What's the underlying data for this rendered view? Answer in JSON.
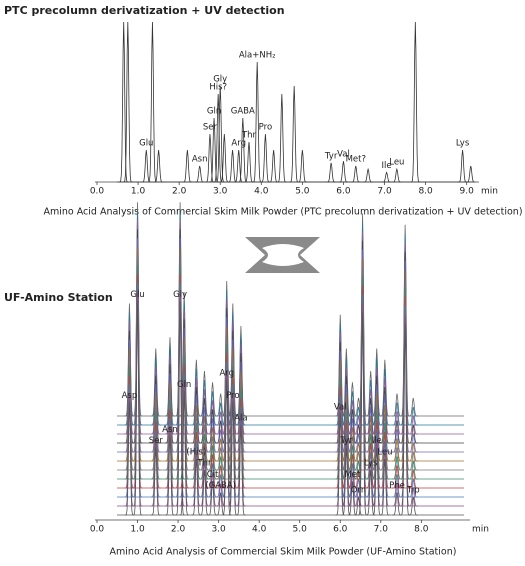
{
  "chart_data": [
    {
      "type": "chromatogram",
      "title": "PTC precolumn derivatization + UV detection",
      "caption": "Amino Acid Analysis of Commercial Skim Milk Powder (PTC precolumn derivatization + UV detection)",
      "x": [
        0.65,
        0.75,
        1.2,
        1.35,
        1.5,
        2.2,
        2.5,
        2.75,
        2.85,
        2.95,
        3.0,
        3.1,
        3.3,
        3.45,
        3.55,
        3.7,
        3.9,
        4.1,
        4.3,
        4.5,
        4.8,
        5.0,
        5.7,
        6.0,
        6.3,
        6.6,
        7.05,
        7.3,
        7.75,
        8.9,
        9.1
      ],
      "values": [
        100,
        100,
        20,
        100,
        20,
        20,
        10,
        30,
        40,
        55,
        60,
        30,
        20,
        20,
        40,
        25,
        75,
        30,
        20,
        55,
        60,
        20,
        12,
        13,
        10,
        8,
        6,
        8,
        100,
        20,
        10
      ],
      "labels": [
        null,
        null,
        "Glu",
        null,
        null,
        null,
        "Asn",
        "Ser",
        "Gln",
        "His?",
        "Gly",
        null,
        null,
        "Arg",
        "GABA",
        "Thr",
        "Ala+NH₂",
        "Pro",
        null,
        null,
        null,
        null,
        "Tyr",
        "Val",
        "Met?",
        null,
        "Ile",
        "Leu",
        null,
        "Lys",
        null
      ],
      "xlim": [
        0,
        9.3
      ],
      "xticks": [
        {
          "value": 0,
          "label": "0.0"
        },
        {
          "value": 1,
          "label": "1.0"
        },
        {
          "value": 2,
          "label": "2.0"
        },
        {
          "value": 3,
          "label": "3.0"
        },
        {
          "value": 4,
          "label": "4.0"
        },
        {
          "value": 5,
          "label": "5.0"
        },
        {
          "value": 6,
          "label": "6.0"
        },
        {
          "value": 7,
          "label": "7.0"
        },
        {
          "value": 8,
          "label": "8.0"
        },
        {
          "value": 9,
          "label": "9.0"
        }
      ],
      "xlabel": "min",
      "ylim": [
        0,
        100
      ],
      "trace_colors": [
        "#333333"
      ]
    },
    {
      "type": "chromatogram",
      "title": "UF-Amino Station",
      "caption": "Amino Acid Analysis of Commercial Skim Milk Powder (UF-Amino Station)",
      "x": [
        0.8,
        1.0,
        1.45,
        1.8,
        2.05,
        2.15,
        2.45,
        2.65,
        2.85,
        3.05,
        3.2,
        3.35,
        3.55,
        6.0,
        6.15,
        6.3,
        6.45,
        6.55,
        6.75,
        6.9,
        7.1,
        7.4,
        7.6,
        7.8
      ],
      "values": [
        50,
        95,
        30,
        35,
        95,
        55,
        25,
        20,
        15,
        10,
        60,
        50,
        40,
        45,
        30,
        15,
        8,
        90,
        20,
        30,
        25,
        10,
        85,
        8
      ],
      "labels": [
        "Asp",
        "Glu",
        "Ser",
        "Asn",
        "Gly",
        "Gln",
        "(His)",
        "Thr",
        "Cit",
        "(GABA)",
        "Arg",
        "Pro",
        "Ala",
        "Val",
        "Tyr",
        "Met",
        "Orn",
        null,
        "Lys",
        "Ile",
        "Leu",
        "Phe",
        null,
        "Trp"
      ],
      "xlim": [
        0,
        9.2
      ],
      "xticks": [
        {
          "value": 0,
          "label": "0.0"
        },
        {
          "value": 1,
          "label": "1.0"
        },
        {
          "value": 2,
          "label": "2.0"
        },
        {
          "value": 3,
          "label": "3.0"
        },
        {
          "value": 4,
          "label": "4.0"
        },
        {
          "value": 5,
          "label": "5.0"
        },
        {
          "value": 6,
          "label": "6.0"
        },
        {
          "value": 7,
          "label": "7.0"
        },
        {
          "value": 8,
          "label": "8.0"
        }
      ],
      "xlabel": "min",
      "ylim": [
        0,
        100
      ],
      "trace_colors": [
        "#555555",
        "#8a4f8a",
        "#4a7ab5",
        "#c04040",
        "#3a8a6a",
        "#777777",
        "#a07030",
        "#6a6ac0",
        "#444444",
        "#9a5aa0",
        "#2a7a9a",
        "#666666"
      ]
    }
  ]
}
